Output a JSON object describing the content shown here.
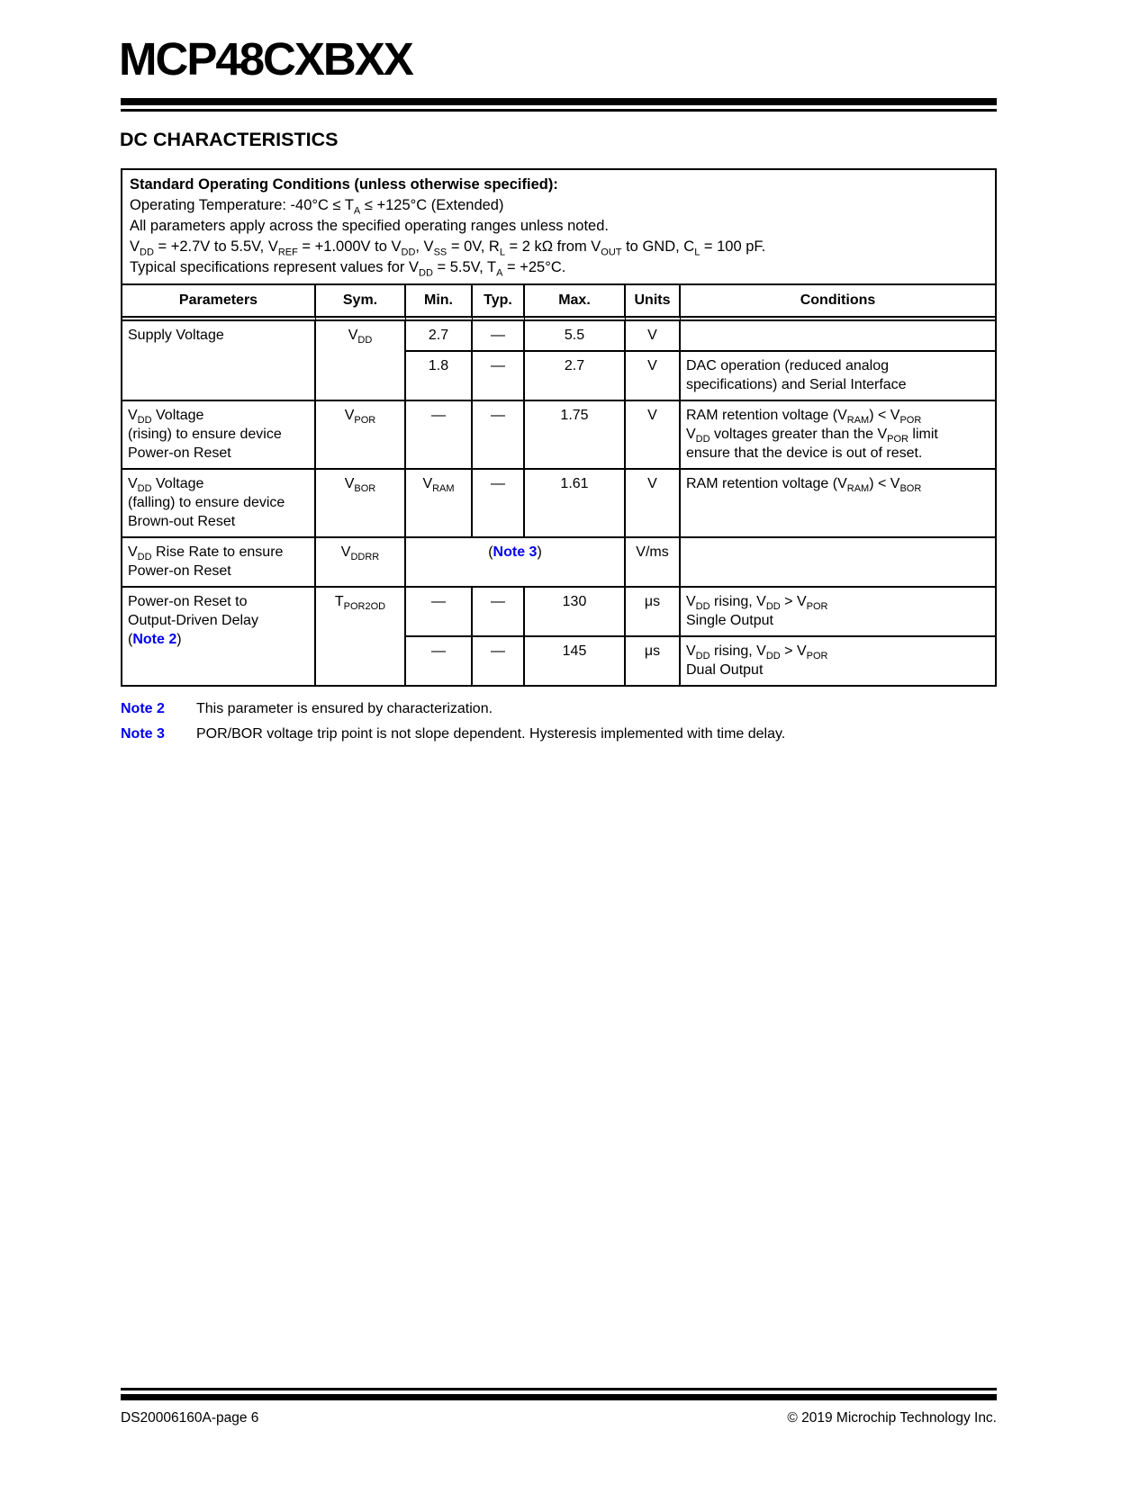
{
  "page": {
    "title": "MCP48CXBXX",
    "section_heading": "DC CHARACTERISTICS"
  },
  "colors": {
    "note_link": "#0000f0"
  },
  "conditions": {
    "heading": "Standard Operating Conditions (unless otherwise specified):",
    "lines": [
      "Operating Temperature: -40°C ≤ T~A~ ≤ +125°C (Extended)",
      "All parameters apply across the specified operating ranges unless noted.",
      "V~DD~ = +2.7V to 5.5V, V~REF~ = +1.000V to V~DD~, V~SS~ = 0V, R~L~ = 2 kΩ from V~OUT~ to GND, C~L~ = 100 pF.",
      "Typical specifications represent values for V~DD~ = 5.5V, T~A~ = +25°C."
    ]
  },
  "table": {
    "headers": [
      "Parameters",
      "Sym.",
      "Min.",
      "Typ.",
      "Max.",
      "Units",
      "Conditions"
    ],
    "supply": {
      "param": "Supply Voltage",
      "sym": "V~DD~",
      "sub1": {
        "min": "2.7",
        "typ": "—",
        "max": "5.5",
        "units": "V",
        "cond": ""
      },
      "sub2": {
        "min": "1.8",
        "typ": "—",
        "max": "2.7",
        "units": "V",
        "cond": "DAC operation (reduced analog\nspecifications) and Serial Interface"
      }
    },
    "vpor": {
      "param": "V~DD~ Voltage\n(rising) to ensure device\nPower-on Reset",
      "sym": "V~POR~",
      "min": "—",
      "typ": "—",
      "max": "1.75",
      "units": "V",
      "cond": "RAM retention voltage (V~RAM~) < V~POR~\nV~DD~ voltages greater than the V~POR~ limit\nensure that the device is out of reset."
    },
    "vbor": {
      "param": "V~DD~ Voltage\n(falling) to ensure device\nBrown-out Reset",
      "sym": "V~BOR~",
      "min": "V~RAM~",
      "typ": "—",
      "max": "1.61",
      "units": "V",
      "cond": "RAM retention voltage (V~RAM~) < V~BOR~"
    },
    "vddrr": {
      "param": "V~DD~ Rise Rate to ensure\nPower-on Reset",
      "sym": "V~DDRR~",
      "span": "({{note:Note 3}})",
      "units": "V/ms",
      "cond": ""
    },
    "tpor2od": {
      "param": "Power-on Reset to\nOutput-Driven Delay\n({{note:Note 2}})",
      "sym": "T~POR2OD~",
      "sub1": {
        "min": "—",
        "typ": "—",
        "max": "130",
        "units": "μs",
        "cond": "V~DD~ rising, V~DD~ > V~POR~\nSingle Output"
      },
      "sub2": {
        "min": "—",
        "typ": "—",
        "max": "145",
        "units": "μs",
        "cond": "V~DD~ rising, V~DD~ > V~POR~\nDual Output"
      }
    }
  },
  "notes": [
    {
      "label": "Note 2",
      "text": "This parameter is ensured by characterization."
    },
    {
      "label": "Note 3",
      "text": "POR/BOR voltage trip point is not slope dependent. Hysteresis implemented with time delay."
    }
  ],
  "footer": {
    "left": "DS20006160A-page 6",
    "right": "© 2019 Microchip Technology Inc."
  }
}
